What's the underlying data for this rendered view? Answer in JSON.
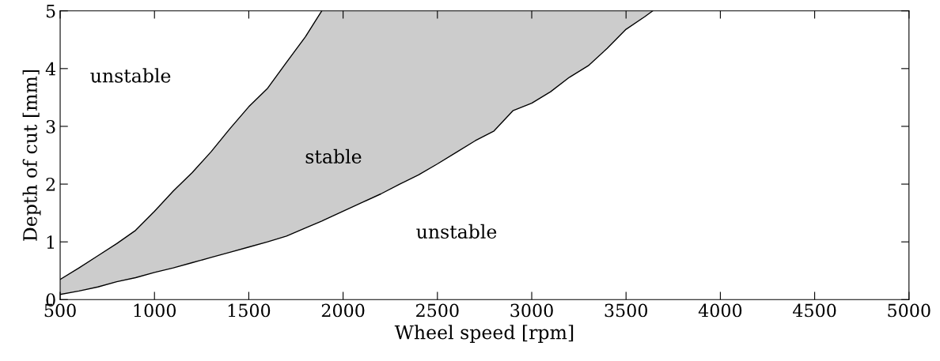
{
  "chart_data": {
    "type": "line",
    "xlabel": "Wheel speed [rpm]",
    "ylabel": "Depth of cut [mm]",
    "xlim": [
      500,
      5000
    ],
    "ylim": [
      0,
      5
    ],
    "xticks": [
      500,
      1000,
      1500,
      2000,
      2500,
      3000,
      3500,
      4000,
      4500,
      5000
    ],
    "yticks": [
      0,
      1,
      2,
      3,
      4,
      5
    ],
    "grid": false,
    "legend": false,
    "series": [
      {
        "color": "#000000",
        "x": [
          500,
          600,
          700,
          800,
          900,
          1000,
          1100,
          1200,
          1300,
          1400,
          1500,
          1600,
          1700,
          1800,
          1887,
          1900,
          2000,
          2100,
          2200,
          2300,
          2400,
          2500,
          2600,
          2700,
          2800,
          2900,
          3000,
          3100,
          3200,
          3300,
          3400,
          3500,
          3600,
          3642
        ],
        "values": [
          0.09,
          0.15,
          0.22,
          0.31,
          0.38,
          0.47,
          0.55,
          0.64,
          0.73,
          0.82,
          0.91,
          1.0,
          1.1,
          1.24,
          1.36,
          1.38,
          1.53,
          1.68,
          1.83,
          2.0,
          2.16,
          2.35,
          2.55,
          2.75,
          2.92,
          3.27,
          3.4,
          3.6,
          3.85,
          4.05,
          4.35,
          4.68,
          4.9,
          5.0
        ],
        "lower": [
          0.09,
          0.15,
          0.22,
          0.31,
          0.38,
          0.47,
          0.55,
          0.64,
          0.73,
          0.82,
          0.91,
          1.0,
          1.1,
          1.24,
          1.36,
          1.38,
          1.53,
          1.68,
          1.83,
          2.0,
          2.16,
          2.35,
          2.55,
          2.75,
          2.92,
          3.27,
          3.4,
          3.6,
          3.85,
          4.05,
          4.35,
          4.68,
          4.9,
          5.0
        ],
        "upper": [
          0.35,
          0.55,
          0.76,
          0.97,
          1.2,
          1.53,
          1.88,
          2.2,
          2.56,
          2.96,
          3.34,
          3.66,
          4.11,
          4.55,
          5.0,
          5.0,
          5.0,
          5.0,
          5.0,
          5.0,
          5.0,
          5.0,
          5.0,
          5.0,
          5.0,
          5.0,
          5.0,
          5.0,
          5.0,
          5.0,
          5.0,
          5.0,
          5.0,
          5.0
        ]
      },
      {
        "color": "#000000",
        "x": [
          500,
          600,
          700,
          800,
          900,
          1000,
          1100,
          1200,
          1300,
          1400,
          1500,
          1600,
          1700,
          1800,
          1887
        ],
        "values": [
          0.35,
          0.55,
          0.76,
          0.97,
          1.2,
          1.53,
          1.88,
          2.2,
          2.56,
          2.96,
          3.34,
          3.66,
          4.11,
          4.55,
          5.0
        ]
      }
    ],
    "annotations": [
      "unstable",
      "stable",
      "unstable"
    ]
  }
}
